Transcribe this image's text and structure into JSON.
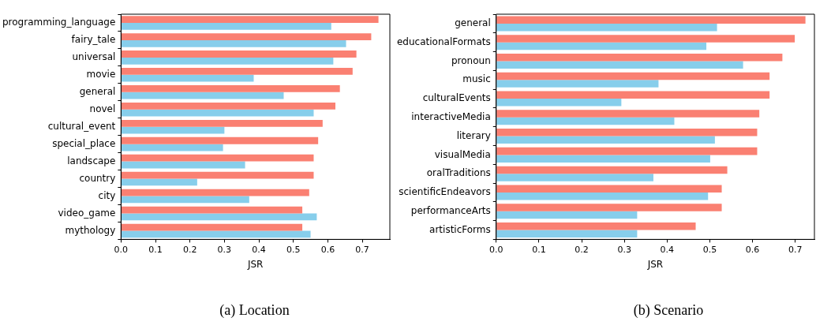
{
  "chart_data": [
    {
      "type": "bar",
      "orientation": "horizontal",
      "title": "(a) Location",
      "xlabel": "JSR",
      "legend": false,
      "grid": false,
      "categories": [
        "programming_language",
        "fairy_tale",
        "universal",
        "movie",
        "general",
        "novel",
        "cultural_event",
        "special_place",
        "landscape",
        "country",
        "city",
        "video_game",
        "mythology"
      ],
      "series": [
        {
          "color": "#fa8072",
          "values": [
            0.747,
            0.726,
            0.683,
            0.672,
            0.635,
            0.622,
            0.585,
            0.572,
            0.559,
            0.559,
            0.546,
            0.526,
            0.526
          ]
        },
        {
          "color": "#87ceeb",
          "values": [
            0.61,
            0.653,
            0.616,
            0.385,
            0.472,
            0.559,
            0.3,
            0.296,
            0.36,
            0.221,
            0.372,
            0.568,
            0.55
          ]
        }
      ],
      "xlim": [
        0,
        0.78
      ],
      "xticks": [
        {
          "value": 0,
          "label": "0.0"
        },
        0.1,
        0.2,
        0.3,
        0.4,
        0.5,
        0.6,
        0.7
      ]
    },
    {
      "type": "bar",
      "orientation": "horizontal",
      "title": "(b) Scenario",
      "xlabel": "JSR",
      "legend": false,
      "grid": false,
      "categories": [
        "general",
        "educationalFormats",
        "pronoun",
        "music",
        "culturalEvents",
        "interactiveMedia",
        "literary",
        "visualMedia",
        "oralTraditions",
        "scientificEndeavors",
        "performanceArts",
        "artisticForms"
      ],
      "series": [
        {
          "color": "#fa8072",
          "values": [
            0.724,
            0.699,
            0.67,
            0.64,
            0.64,
            0.616,
            0.611,
            0.611,
            0.541,
            0.528,
            0.528,
            0.467
          ]
        },
        {
          "color": "#87ceeb",
          "values": [
            0.517,
            0.492,
            0.578,
            0.38,
            0.293,
            0.417,
            0.512,
            0.501,
            0.368,
            0.496,
            0.33,
            0.33
          ]
        }
      ],
      "xlim": [
        0,
        0.745
      ],
      "xticks": [
        {
          "value": 0,
          "label": "0.0"
        },
        0.1,
        0.2,
        0.3,
        0.4,
        0.5,
        0.6,
        0.7
      ]
    }
  ]
}
